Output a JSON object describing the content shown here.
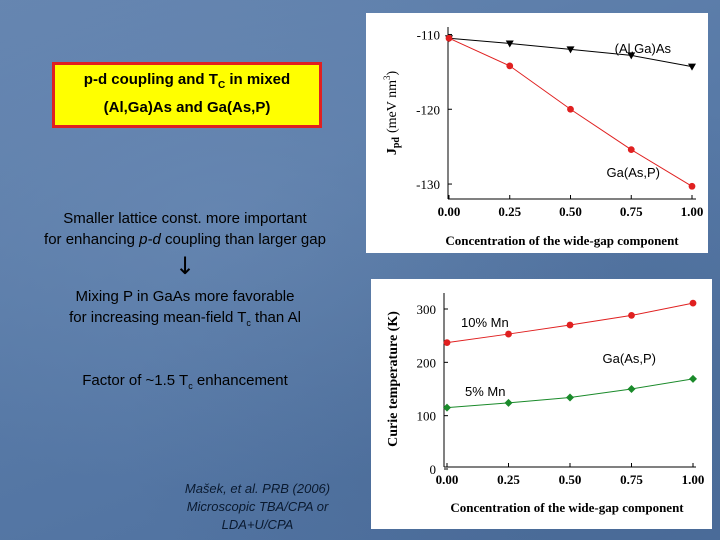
{
  "title": {
    "line1_prefix": "p-d coupling and T",
    "line1_sub": "C",
    "line1_suffix": " in mixed",
    "line2": "(Al,Ga)As and Ga(As,P)"
  },
  "points": {
    "p1_line1": "Smaller lattice const. more important",
    "p1_line2_pre": "for enhancing ",
    "p1_line2_em": "p-d",
    "p1_line2_post": " coupling than larger gap",
    "arrow": "↓",
    "p2_line1": "Mixing P in GaAs more favorable",
    "p2_line2_pre": "for increasing mean-field T",
    "p2_line2_sub": "c",
    "p2_line2_post": " than Al",
    "p3_pre": "Factor of ~1.5 T",
    "p3_sub": "c",
    "p3_post": " enhancement"
  },
  "citation": {
    "line1": "Mašek, et al. PRB (2006)",
    "line2": "Microscopic TBA/CPA or",
    "line3": "LDA+U/CPA"
  },
  "chart_data": [
    {
      "type": "line",
      "xlabel": "Concentration of the wide-gap component",
      "ylabel_main": "J",
      "ylabel_sub": "pd",
      "ylabel_unit_pre": "(meV nm",
      "ylabel_unit_sup": "3",
      "ylabel_unit_post": ")",
      "xlim": [
        0,
        1
      ],
      "ylim": [
        -132,
        -109
      ],
      "xticks": [
        "0.00",
        "0.25",
        "0.50",
        "0.75",
        "1.00"
      ],
      "yticks": [
        "-110",
        "-120",
        "-130"
      ],
      "x": [
        0,
        0.25,
        0.5,
        0.75,
        1.0
      ],
      "series": [
        {
          "name": "(Al,Ga)As",
          "color": "#000000",
          "marker": "triangle-down",
          "values": [
            -110.5,
            -111.2,
            -112.0,
            -112.8,
            -114.3
          ]
        },
        {
          "name": "Ga(As,P)",
          "color": "#e02020",
          "marker": "circle",
          "values": [
            -110.5,
            -114.2,
            -120.0,
            -125.4,
            -130.3
          ]
        }
      ]
    },
    {
      "type": "line",
      "xlabel": "Concentration of the wide-gap component",
      "ylabel": "Curie temperature (K)",
      "xlim": [
        0,
        1
      ],
      "ylim": [
        0,
        330
      ],
      "xticks": [
        "0.00",
        "0.25",
        "0.50",
        "0.75",
        "1.00"
      ],
      "yticks": [
        "0",
        "100",
        "200",
        "300"
      ],
      "annotation": "Ga(As,P)",
      "x": [
        0,
        0.25,
        0.5,
        0.75,
        1.0
      ],
      "series": [
        {
          "name": "10% Mn",
          "color": "#e02020",
          "marker": "circle",
          "values": [
            237,
            253,
            270,
            288,
            311
          ]
        },
        {
          "name": "5% Mn",
          "color": "#1a8a2a",
          "marker": "diamond",
          "values": [
            115,
            124,
            134,
            150,
            169
          ]
        }
      ]
    }
  ]
}
